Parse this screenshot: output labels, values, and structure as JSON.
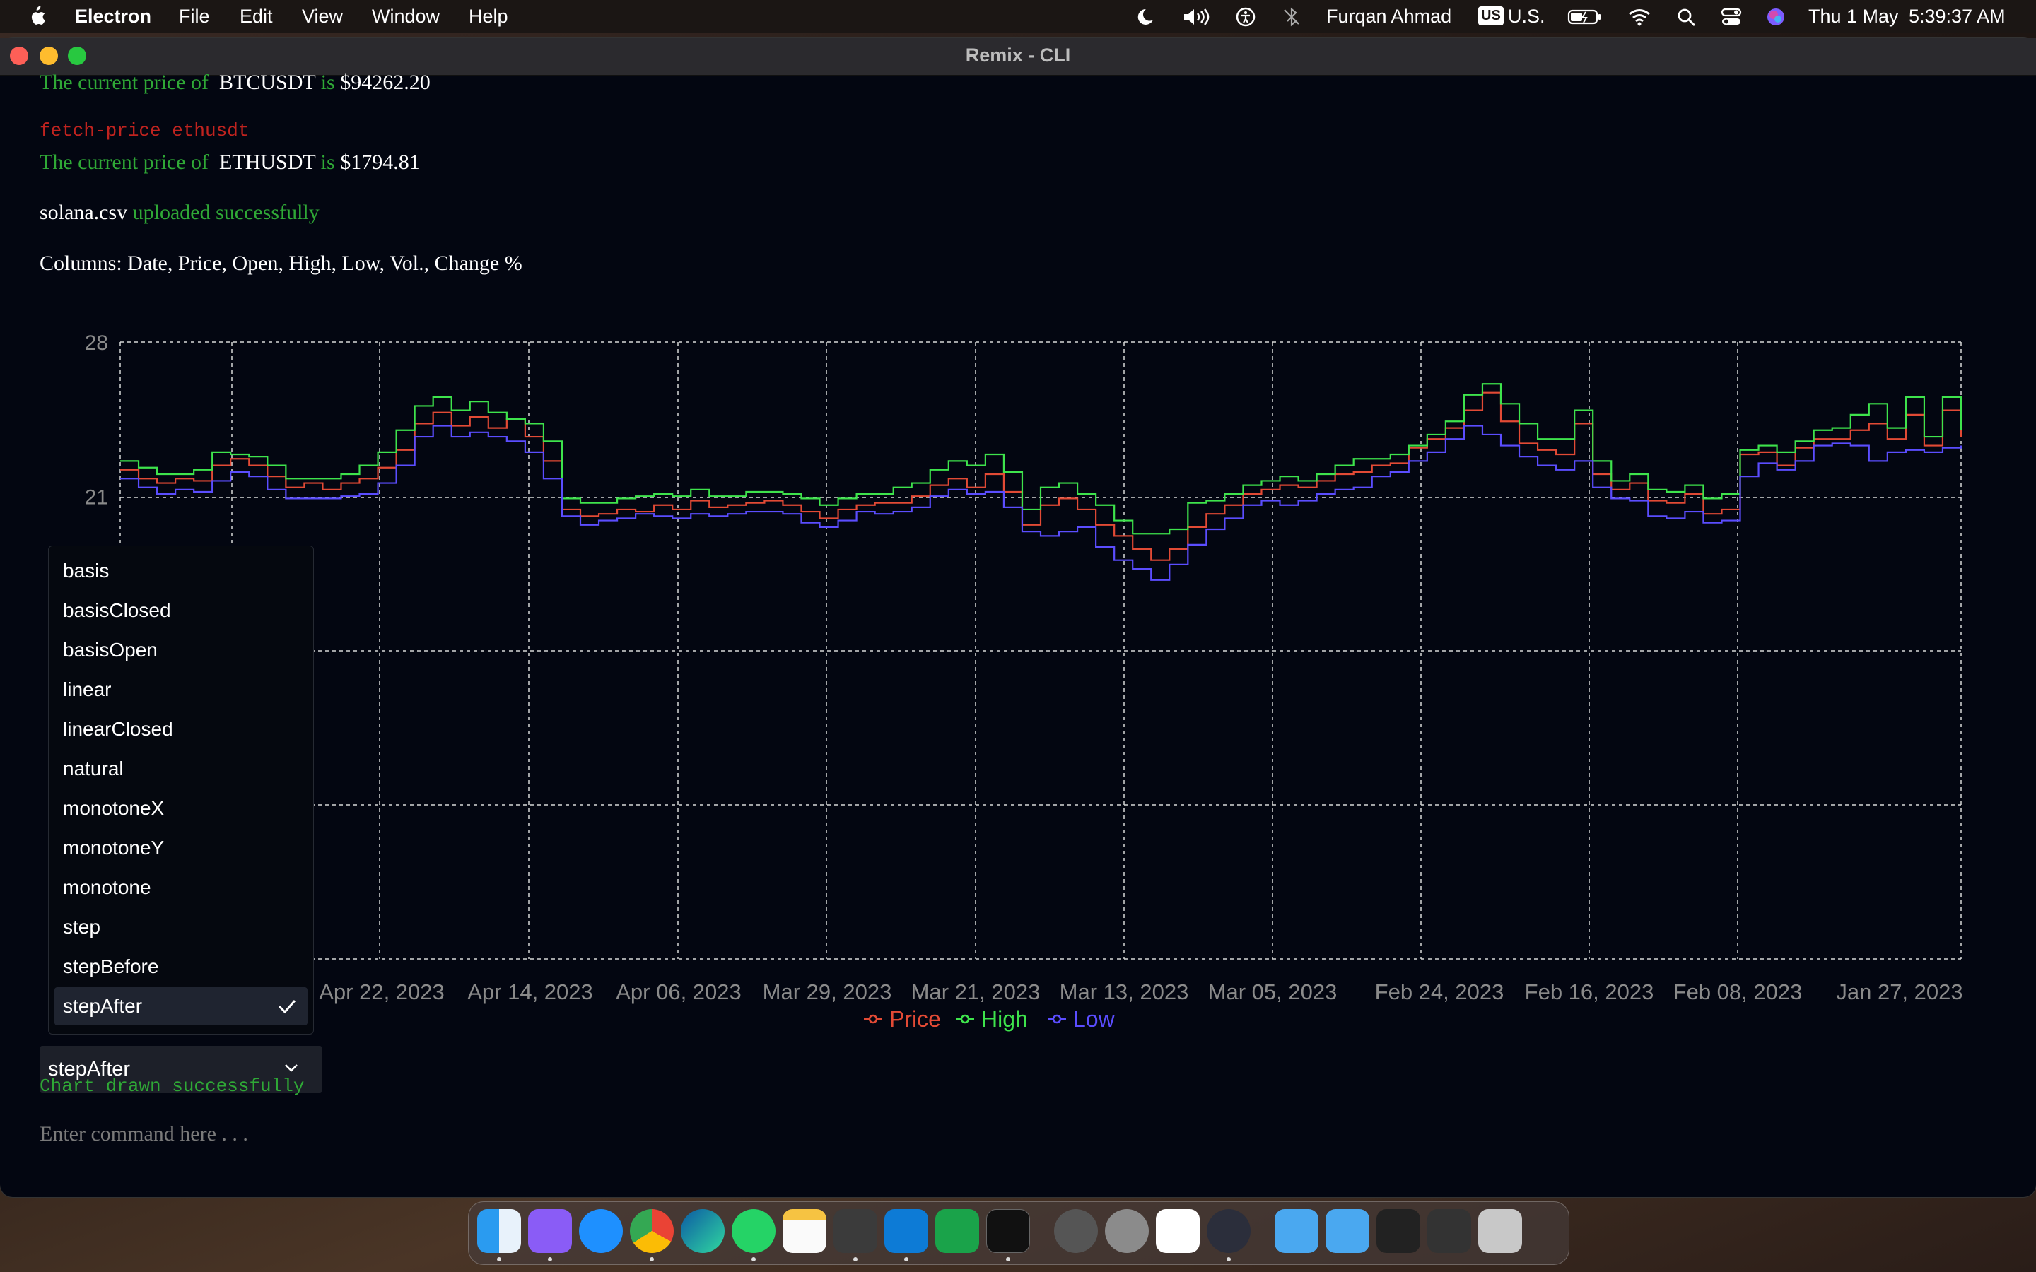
{
  "menubar": {
    "app_name": "Electron",
    "items": [
      "File",
      "Edit",
      "View",
      "Window",
      "Help"
    ],
    "user": "Furqan Ahmad",
    "input_source_badge": "US",
    "input_source": "U.S.",
    "date": "Thu 1 May",
    "time": "5:39:37 AM",
    "status_icons": [
      "moon-icon",
      "volume-icon",
      "accessibility-icon",
      "bluetooth-icon",
      "battery-icon",
      "wifi-icon",
      "search-icon",
      "control-center-icon",
      "siri-icon"
    ]
  },
  "window": {
    "title": "Remix - CLI"
  },
  "terminal": {
    "line1_prefix": "The current price of",
    "line1_symbol": "BTCUSDT",
    "line1_is": "is",
    "line1_value": "$94262.20",
    "cmd2": "fetch-price ethusdt",
    "line2_prefix": "The current price of",
    "line2_symbol": "ETHUSDT",
    "line2_is": "is",
    "line2_value": "$1794.81",
    "upload_file": "solana.csv",
    "upload_msg": "uploaded successfully",
    "columns": "Columns: Date, Price, Open, High, Low, Vol., Change %",
    "chart_msg": "Chart drawn successfully",
    "command_placeholder": "Enter command here . . ."
  },
  "colors": {
    "price": "#e24a35",
    "high": "#3ee34c",
    "low": "#5b4dff",
    "green_text": "#2fa836",
    "red_text": "#c0231f",
    "background": "#030611"
  },
  "curve_select": {
    "selected": "stepAfter",
    "options": [
      "basis",
      "basisClosed",
      "basisOpen",
      "linear",
      "linearClosed",
      "natural",
      "monotoneX",
      "monotoneY",
      "monotone",
      "step",
      "stepBefore",
      "stepAfter"
    ],
    "check_icon": "check-icon",
    "chevron_icon": "chevron-down-icon"
  },
  "chart_data": {
    "type": "line",
    "curve": "stepAfter",
    "grid": true,
    "legend_position": "bottom-center",
    "y_ticks": [
      "28",
      "21"
    ],
    "ylim": [
      0,
      28
    ],
    "x_ticks": [
      "Apr 22, 2023",
      "Apr 14, 2023",
      "Apr 06, 2023",
      "Mar 29, 2023",
      "Mar 21, 2023",
      "Mar 13, 2023",
      "Mar 05, 2023",
      "Feb 24, 2023",
      "Feb 16, 2023",
      "Feb 08, 2023",
      "Jan 27, 2023"
    ],
    "series": [
      {
        "name": "Price",
        "values": [
          22.2,
          21.8,
          21.6,
          21.8,
          21.7,
          22.4,
          22.7,
          22.4,
          21.9,
          21.4,
          21.6,
          21.3,
          21.6,
          21.8,
          22.3,
          23.1,
          24.3,
          24.8,
          24.2,
          24.6,
          24.1,
          24.5,
          23.7,
          22.6,
          20.4,
          20.1,
          20.2,
          20.4,
          20.3,
          20.6,
          20.4,
          20.8,
          20.5,
          20.6,
          20.7,
          20.8,
          20.6,
          20.3,
          20.0,
          20.4,
          20.6,
          20.7,
          20.7,
          21.0,
          21.5,
          21.8,
          21.4,
          22.0,
          21.2,
          19.7,
          20.6,
          20.9,
          20.4,
          19.7,
          19.2,
          18.6,
          18.1,
          18.6,
          19.6,
          20.2,
          20.6,
          21.1,
          21.3,
          21.5,
          21.4,
          21.7,
          22.0,
          22.1,
          22.4,
          22.5,
          23.2,
          23.6,
          24.1,
          24.9,
          25.7,
          24.4,
          23.4,
          23.1,
          22.9,
          24.3,
          22.0,
          21.3,
          21.6,
          20.8,
          20.7,
          21.1,
          20.2,
          20.4,
          22.9,
          23.0,
          22.4,
          23.2,
          23.6,
          23.6,
          24.0,
          24.3,
          23.6,
          24.7,
          23.3,
          24.9,
          23.7
        ],
        "lines_note": ""
      },
      {
        "name": "High",
        "values": [
          22.6,
          22.3,
          22.0,
          22.0,
          22.2,
          23.0,
          22.9,
          22.8,
          22.4,
          21.8,
          21.8,
          21.8,
          22.0,
          22.4,
          23.0,
          24.0,
          25.1,
          25.5,
          24.9,
          25.3,
          24.8,
          24.5,
          24.3,
          23.5,
          20.9,
          20.7,
          20.7,
          20.9,
          21.0,
          21.1,
          21.0,
          21.3,
          21.0,
          21.0,
          21.2,
          21.2,
          21.1,
          20.9,
          20.6,
          20.9,
          21.1,
          21.1,
          21.4,
          21.6,
          22.2,
          22.6,
          22.4,
          22.9,
          22.1,
          20.4,
          21.4,
          21.6,
          21.1,
          20.6,
          19.9,
          19.3,
          19.3,
          19.5,
          20.7,
          20.8,
          21.1,
          21.5,
          21.7,
          21.9,
          21.7,
          22.0,
          22.4,
          22.7,
          22.7,
          22.9,
          23.3,
          23.8,
          24.4,
          25.6,
          26.1,
          25.2,
          24.3,
          23.6,
          23.6,
          24.9,
          22.6,
          21.7,
          22.0,
          21.3,
          21.2,
          21.5,
          20.9,
          21.1,
          23.1,
          23.3,
          23.0,
          23.5,
          24.0,
          24.1,
          24.7,
          25.2,
          24.1,
          25.5,
          23.7,
          25.5,
          24.0
        ],
        "lines_note": ""
      },
      {
        "name": "Low",
        "values": [
          21.8,
          21.4,
          21.1,
          21.3,
          21.2,
          21.7,
          22.1,
          21.9,
          21.3,
          20.9,
          20.9,
          20.9,
          21.0,
          21.1,
          21.6,
          22.4,
          23.7,
          24.2,
          23.7,
          23.9,
          23.7,
          23.5,
          23.0,
          21.8,
          20.1,
          19.7,
          19.9,
          20.0,
          20.2,
          20.1,
          20.0,
          20.2,
          20.1,
          20.2,
          20.3,
          20.3,
          20.2,
          19.8,
          19.6,
          19.9,
          20.3,
          20.2,
          20.3,
          20.5,
          21.0,
          21.3,
          21.1,
          21.2,
          20.5,
          19.4,
          19.2,
          19.4,
          19.6,
          18.7,
          18.1,
          17.7,
          17.2,
          17.9,
          18.8,
          19.5,
          20.0,
          20.6,
          20.8,
          20.6,
          20.8,
          21.1,
          21.3,
          21.4,
          21.9,
          22.1,
          22.6,
          23.0,
          23.6,
          24.2,
          23.8,
          23.3,
          22.8,
          22.4,
          22.2,
          22.6,
          21.4,
          20.9,
          20.8,
          20.1,
          20.0,
          20.3,
          19.8,
          19.9,
          21.9,
          22.5,
          22.2,
          22.6,
          23.3,
          23.4,
          23.3,
          22.6,
          23.0,
          23.1,
          23.0,
          23.2,
          23.3
        ],
        "lines_note": ""
      }
    ]
  }
}
